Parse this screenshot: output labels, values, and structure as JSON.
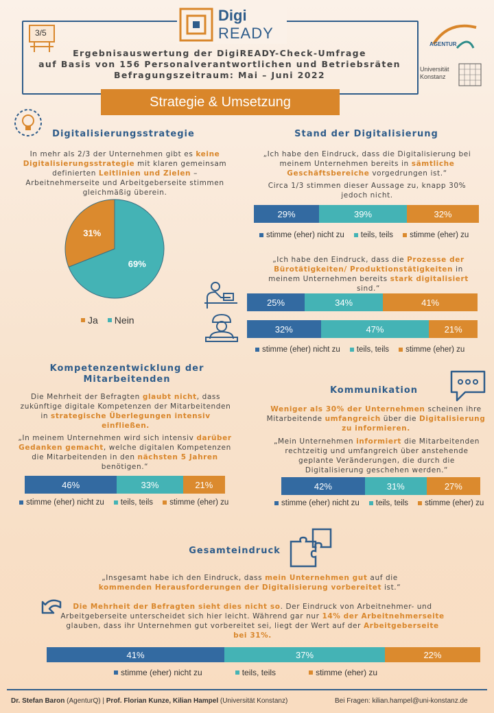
{
  "header": {
    "page_badge": "3/5",
    "logo_top": "Digi",
    "logo_bottom": "READY",
    "title_line1": "Ergebnisauswertung der DigiREADY-Check-Umfrage",
    "title_line2": "auf Basis von 156 Personalverantwortlichen und Betriebsräten",
    "title_line3": "Befragungszeitraum: Mai – Juni 2022",
    "agentur_logo": "AGENTUR",
    "uni_logo_line1": "Universität",
    "uni_logo_line2": "Konstanz"
  },
  "banner": "Strategie & Umsetzung",
  "colors": {
    "blue": "#336aa1",
    "teal": "#44b3b5",
    "orange": "#db8a2e",
    "heading": "#2e5c8a"
  },
  "legend_labels": [
    "stimme (eher) nicht zu",
    "teils, teils",
    "stimme (eher) zu"
  ],
  "digital_strategy": {
    "title": "Digitalisierungsstrategie",
    "icon": "lightbulb-gear-icon",
    "text_a": "In mehr als 2/3 der Unternehmen gibt es ",
    "text_b": "keine Digitalisierungsstrategie",
    "text_c": " mit klaren gemeinsam definierten ",
    "text_d": "Leitlinien und Zielen",
    "text_e": " – Arbeitnehmerseite und Arbeitgeberseite stimmen gleichmäßig überein.",
    "chart_data": {
      "type": "pie",
      "categories": [
        "Ja",
        "Nein"
      ],
      "values": [
        31,
        69
      ],
      "labels": [
        "31%",
        "69%"
      ],
      "colors": [
        "#db8a2e",
        "#44b3b5"
      ],
      "legend_placement": "bottom"
    }
  },
  "stand": {
    "title": "Stand der Digitalisierung",
    "q1_a": "„Ich habe den Eindruck, dass die Digitalisierung bei meinem Unternehmen bereits in ",
    "q1_b": "sämtliche Geschäftsbereiche",
    "q1_c": " vorgedrungen ist.“",
    "note": "Circa 1/3 stimmen dieser Aussage zu, knapp 30% jedoch nicht.",
    "bar1": [
      "29%",
      "39%",
      "32%"
    ],
    "q2_a": "„Ich habe den Eindruck, dass die ",
    "q2_b": "Prozesse der Bürotätigkeiten/ Produktionstätigkeiten",
    "q2_c": " in meinem Unternehmen bereits ",
    "q2_d": "stark digitalisiert",
    "q2_e": " sind.“",
    "bar2": [
      "25%",
      "34%",
      "41%"
    ],
    "bar3": [
      "32%",
      "47%",
      "21%"
    ],
    "icon_office": "office-worker-icon",
    "icon_worker": "factory-worker-icon",
    "chart_data": {
      "type": "bar",
      "categories": [
        "Geschäftsbereiche",
        "Bürotätigkeiten",
        "Produktionstätigkeiten"
      ],
      "series": [
        {
          "name": "stimme (eher) nicht zu",
          "values": [
            29,
            25,
            32
          ]
        },
        {
          "name": "teils, teils",
          "values": [
            39,
            34,
            47
          ]
        },
        {
          "name": "stimme (eher) zu",
          "values": [
            32,
            41,
            21
          ]
        }
      ],
      "stacked": true,
      "orientation": "horizontal"
    }
  },
  "kompetenz": {
    "title_line1": "Kompetenzentwicklung der",
    "title_line2": "Mitarbeitenden",
    "t_a": "Die Mehrheit der Befragten ",
    "t_b": "glaubt nicht",
    "t_c": ", dass zukünftige digitale Kompetenzen der Mitarbeitenden in ",
    "t_d": "strategische Überlegungen intensiv einfließen.",
    "q_a": "„In meinem Unternehmen wird sich intensiv ",
    "q_b": "darüber Gedanken gemacht",
    "q_c": ", welche digitalen Kompetenzen die Mitarbeitenden in den ",
    "q_d": "nächsten 5 Jahren",
    "q_e": " benötigen.“",
    "bar": [
      "46%",
      "33%",
      "21%"
    ],
    "chart_data": {
      "type": "bar",
      "stacked": true,
      "series": [
        {
          "name": "stimme (eher) nicht zu",
          "values": [
            46
          ]
        },
        {
          "name": "teils, teils",
          "values": [
            33
          ]
        },
        {
          "name": "stimme (eher) zu",
          "values": [
            21
          ]
        }
      ]
    }
  },
  "kommunikation": {
    "title": "Kommunikation",
    "icon": "chat-bubble-icon",
    "t_a": "Weniger als 30% der Unternehmen",
    "t_b": " scheinen ihre Mitarbeitende ",
    "t_c": "umfangreich",
    "t_d": " über die ",
    "t_e": "Digitalisierung zu informieren.",
    "q_a": "„Mein Unternehmen ",
    "q_b": "informiert",
    "q_c": " die Mitarbeitenden rechtzeitig und umfangreich über anstehende geplante Veränderungen, die durch die Digitalisierung geschehen werden.“",
    "bar": [
      "42%",
      "31%",
      "27%"
    ],
    "chart_data": {
      "type": "bar",
      "stacked": true,
      "series": [
        {
          "name": "stimme (eher) nicht zu",
          "values": [
            42
          ]
        },
        {
          "name": "teils, teils",
          "values": [
            31
          ]
        },
        {
          "name": "stimme (eher) zu",
          "values": [
            27
          ]
        }
      ]
    }
  },
  "gesamt": {
    "title": "Gesamteindruck",
    "icon": "puzzle-icon",
    "q_a": "„Insgesamt habe ich den Eindruck, dass ",
    "q_b": "mein Unternehmen gut",
    "q_c": " auf die ",
    "q_d": "kommenden Herausforderungen der Digitalisierung vorbereitet",
    "q_e": " ist.“",
    "t_a": "Die Mehrheit der Befragten sieht dies nicht so",
    "t_b": ". Der Eindruck von Arbeitnehmer- und Arbeitgeberseite unterscheidet sich hier leicht. Während gar nur ",
    "t_c": "14% der Arbeitnehmerseite",
    "t_d": " glauben, dass ihr Unternehmen gut vorbereitet sei, liegt der Wert auf der ",
    "t_e": "Arbeitgeberseite bei 31%.",
    "bar": [
      "41%",
      "37%",
      "22%"
    ],
    "chart_data": {
      "type": "bar",
      "stacked": true,
      "series": [
        {
          "name": "stimme (eher) nicht zu",
          "values": [
            41
          ]
        },
        {
          "name": "teils, teils",
          "values": [
            37
          ]
        },
        {
          "name": "stimme (eher) zu",
          "values": [
            22
          ]
        }
      ]
    }
  },
  "footer": {
    "a1": "Dr. Stefan Baron",
    "a2": " (AgenturQ) | ",
    "a3": "Prof. Florian Kunze, Kilian Hampel",
    "a4": " (Universität Konstanz)",
    "contact": "Bei Fragen: kilian.hampel@uni-konstanz.de"
  }
}
